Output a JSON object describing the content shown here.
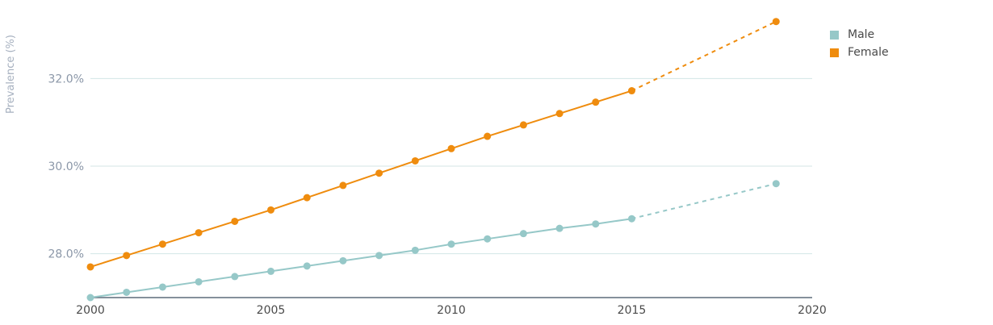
{
  "chart_data": {
    "type": "line",
    "ylabel": "Prevalence (%)",
    "xlabel": "",
    "xlim": [
      2000,
      2020
    ],
    "ylim": [
      27.0,
      33.0
    ],
    "x_ticks": [
      2000,
      2005,
      2010,
      2015,
      2020
    ],
    "y_ticks": [
      28.0,
      30.0,
      32.0
    ],
    "y_tick_labels": [
      "28.0%",
      "30.0%",
      "32.0%"
    ],
    "grid": "horizontal",
    "legend_position": "top-right",
    "projection_style": "dashed",
    "series": [
      {
        "name": "Male",
        "color": "#96c8c8",
        "x": [
          2000,
          2001,
          2002,
          2003,
          2004,
          2005,
          2006,
          2007,
          2008,
          2009,
          2010,
          2011,
          2012,
          2013,
          2014,
          2015,
          2019
        ],
        "values": [
          27.0,
          27.12,
          27.24,
          27.36,
          27.48,
          27.6,
          27.72,
          27.84,
          27.96,
          28.08,
          28.22,
          28.34,
          28.46,
          28.58,
          28.68,
          28.8,
          29.6
        ],
        "projected_from_index": 15
      },
      {
        "name": "Female",
        "color": "#ef8c0e",
        "x": [
          2000,
          2001,
          2002,
          2003,
          2004,
          2005,
          2006,
          2007,
          2008,
          2009,
          2010,
          2011,
          2012,
          2013,
          2014,
          2015,
          2019
        ],
        "values": [
          27.7,
          27.96,
          28.22,
          28.48,
          28.74,
          29.0,
          29.28,
          29.56,
          29.84,
          30.12,
          30.4,
          30.68,
          30.94,
          31.2,
          31.46,
          31.72,
          33.3
        ],
        "projected_from_index": 15
      }
    ]
  }
}
